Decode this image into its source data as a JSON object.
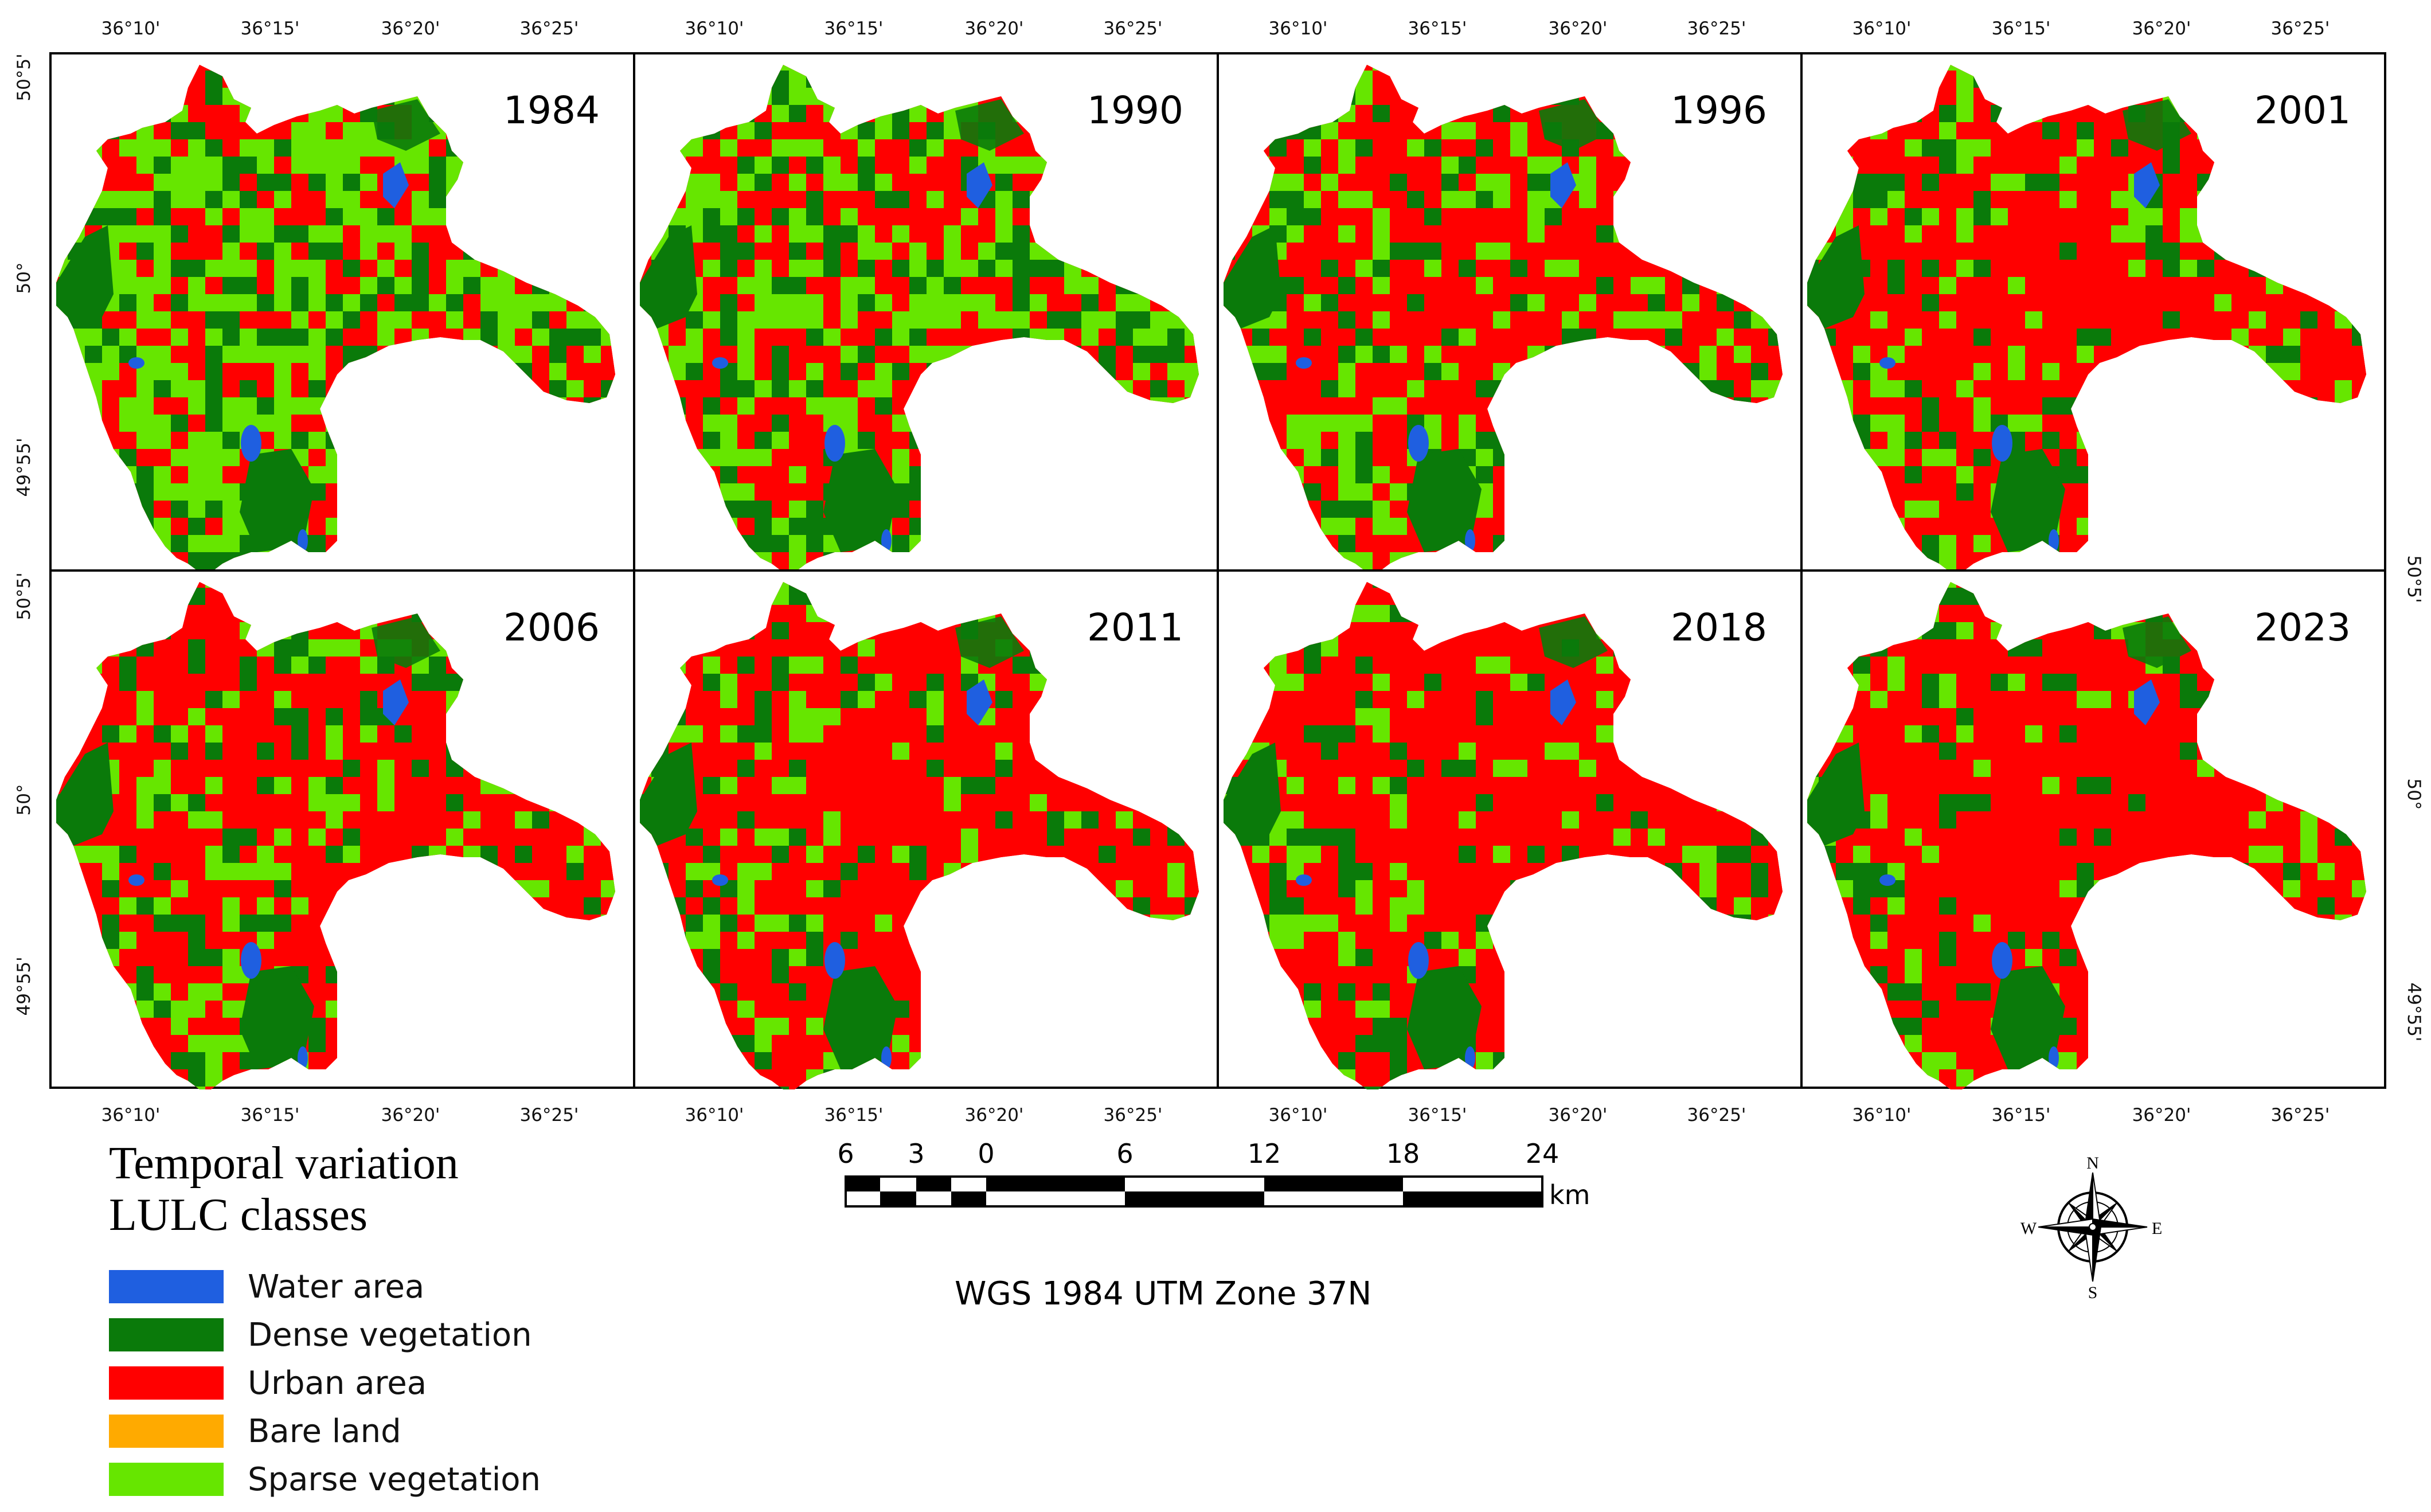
{
  "panels": [
    {
      "year": "1984",
      "mix": {
        "urban": 0.3,
        "dense": 0.25,
        "sparse": 0.45
      }
    },
    {
      "year": "1990",
      "mix": {
        "urban": 0.42,
        "dense": 0.2,
        "sparse": 0.38
      }
    },
    {
      "year": "1996",
      "mix": {
        "urban": 0.62,
        "dense": 0.16,
        "sparse": 0.22
      }
    },
    {
      "year": "2001",
      "mix": {
        "urban": 0.64,
        "dense": 0.15,
        "sparse": 0.21
      }
    },
    {
      "year": "2006",
      "mix": {
        "urban": 0.66,
        "dense": 0.14,
        "sparse": 0.2
      }
    },
    {
      "year": "2011",
      "mix": {
        "urban": 0.72,
        "dense": 0.14,
        "sparse": 0.14
      }
    },
    {
      "year": "2018",
      "mix": {
        "urban": 0.73,
        "dense": 0.14,
        "sparse": 0.13
      }
    },
    {
      "year": "2023",
      "mix": {
        "urban": 0.74,
        "dense": 0.13,
        "sparse": 0.13
      }
    }
  ],
  "longitude_ticks": [
    "36°10'",
    "36°15'",
    "36°20'",
    "36°25'"
  ],
  "latitude_ticks": [
    "50°5'",
    "50°",
    "49°55'"
  ],
  "legend": {
    "title_line1": "Temporal variation",
    "title_line2": "LULC classes",
    "items": [
      {
        "label": "Water area",
        "color": "#1f5fe0"
      },
      {
        "label": "Dense vegetation",
        "color": "#0a7a0a"
      },
      {
        "label": "Urban area",
        "color": "#ff0000"
      },
      {
        "label": "Bare land",
        "color": "#ffaa00"
      },
      {
        "label": "Sparse vegetation",
        "color": "#66e600"
      }
    ]
  },
  "scale_bar": {
    "labels": [
      "6",
      "3",
      "0",
      "6",
      "12",
      "18",
      "24"
    ],
    "unit": "km"
  },
  "projection": "WGS 1984 UTM Zone 37N",
  "compass": {
    "n": "N",
    "s": "S",
    "e": "E",
    "w": "W"
  }
}
